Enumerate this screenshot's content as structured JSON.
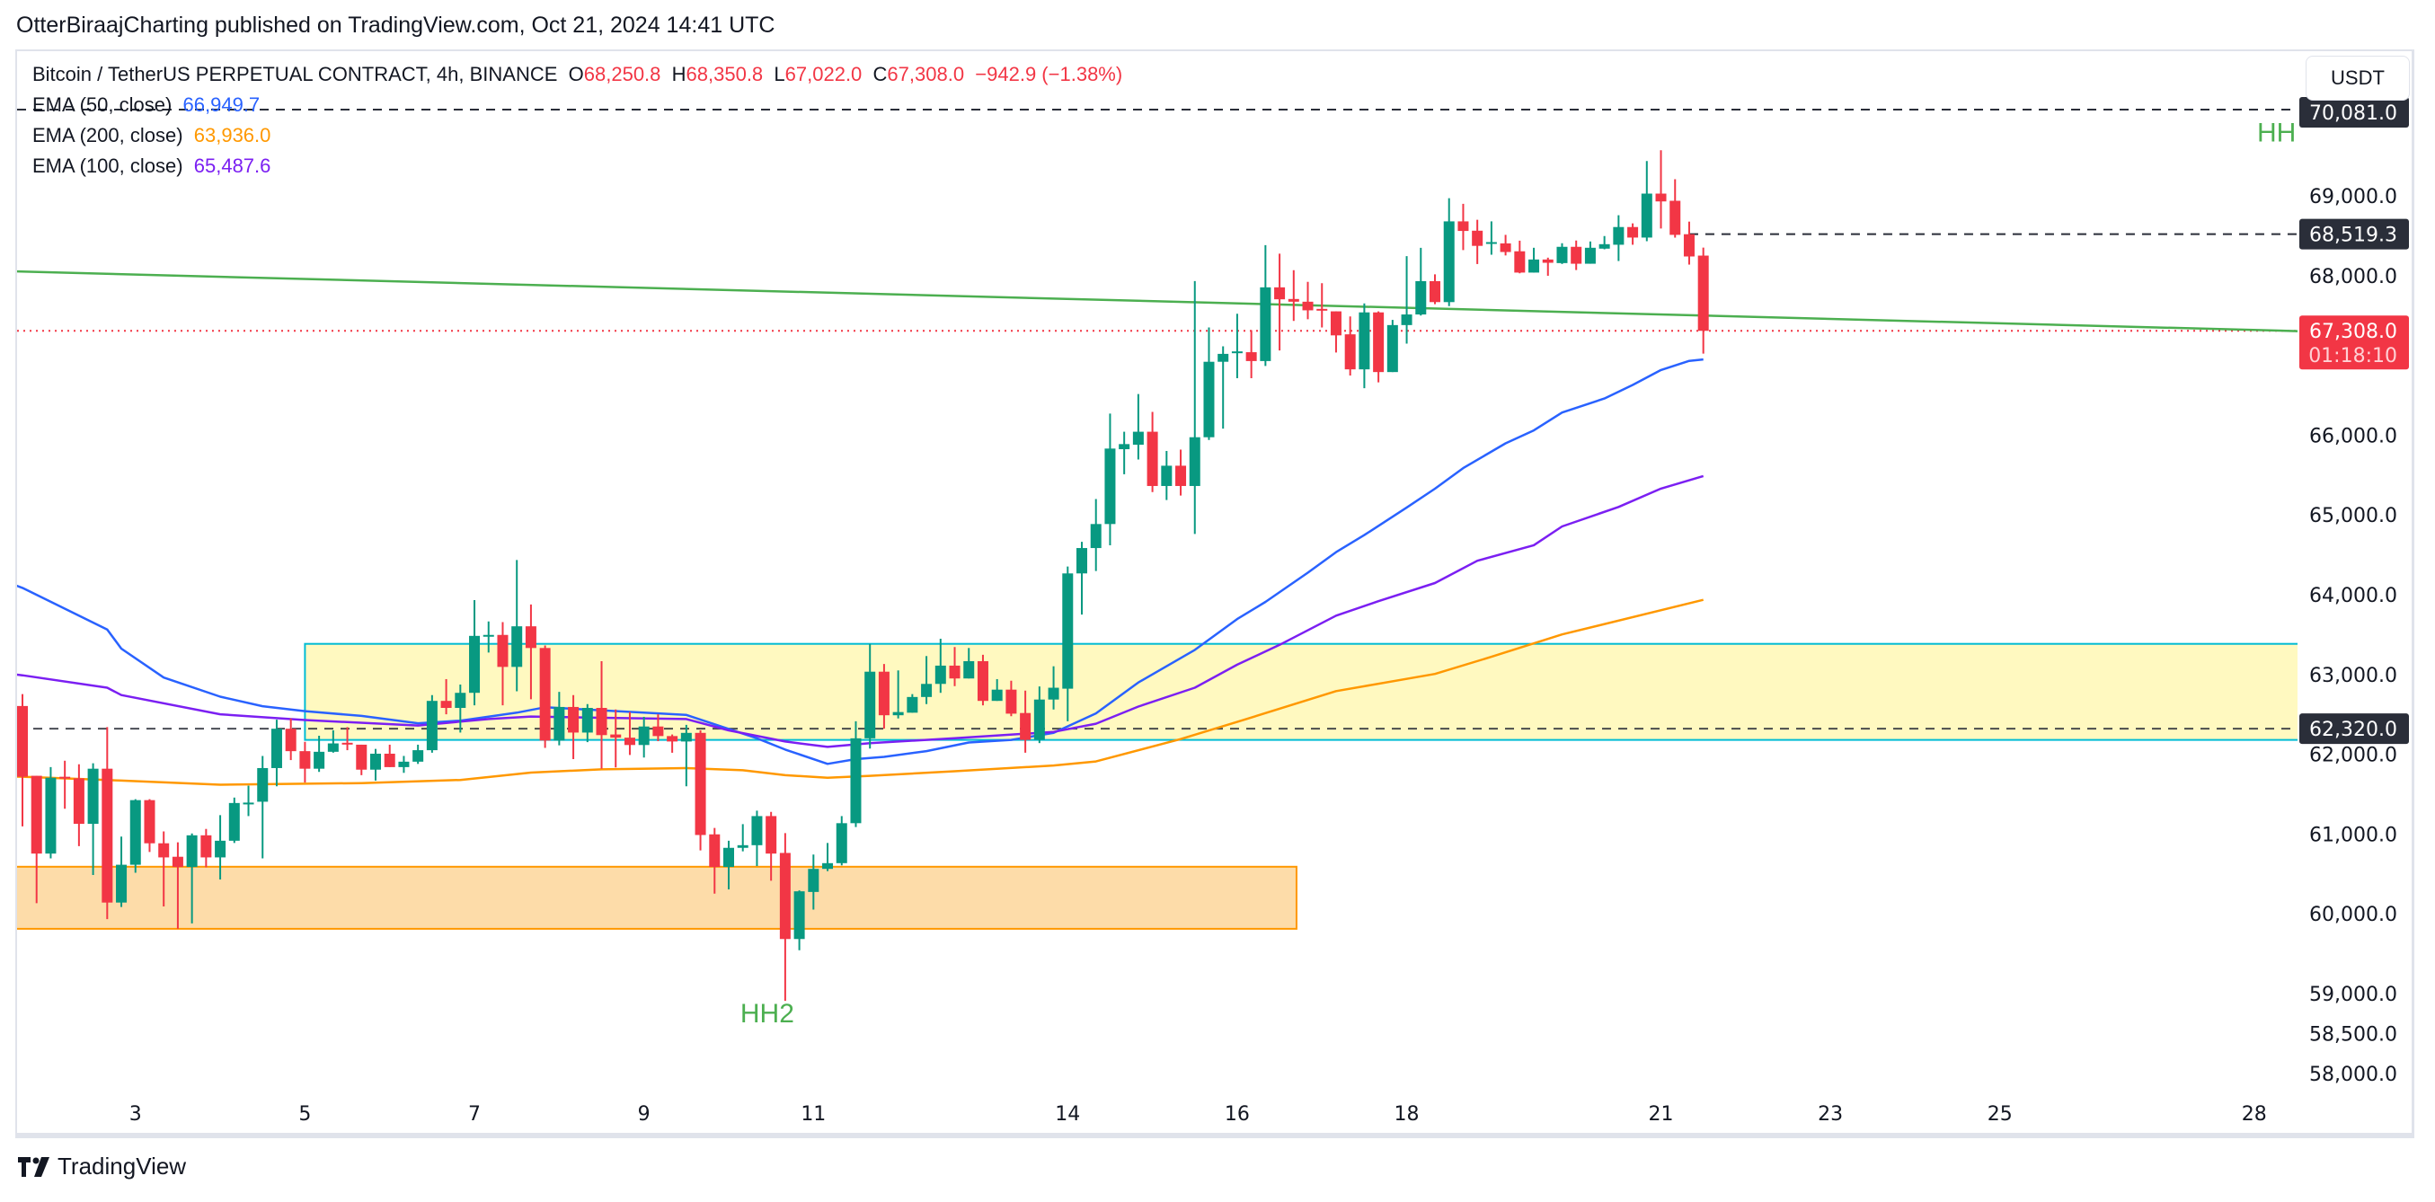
{
  "published": "OtterBiraajCharting published on TradingView.com, Oct 21, 2024 14:41 UTC",
  "legend": {
    "symbol": "Bitcoin / TetherUS PERPETUAL CONTRACT, 4h, BINANCE",
    "o_label": "O",
    "o": "68,250.8",
    "h_label": "H",
    "h": "68,350.8",
    "l_label": "L",
    "l": "67,022.0",
    "c_label": "C",
    "c": "67,308.0",
    "change": "−942.9 (−1.38%)",
    "ema50_label": "EMA (50, close)",
    "ema50_value": "66,949.7",
    "ema200_label": "EMA (200, close)",
    "ema200_value": "63,936.0",
    "ema100_label": "EMA (100, close)",
    "ema100_value": "65,487.6"
  },
  "currency_button": "USDT",
  "brand": "TradingView",
  "colors": {
    "up": "#089981",
    "down": "#F23645",
    "ema50": "#2962FF",
    "ema100": "#7B1FF2",
    "ema200": "#FF9800",
    "trend": "#4CAF50",
    "box_border": "#00BCD4"
  },
  "chart_data": {
    "type": "candlestick",
    "title": "Bitcoin / TetherUS PERPETUAL CONTRACT, 4h, BINANCE",
    "ylim": [
      57700,
      70150
    ],
    "y_ticks": [
      "69,000.0",
      "68,000.0",
      "66,000.0",
      "65,000.0",
      "64,000.0",
      "63,000.0",
      "62,000.0",
      "61,000.0",
      "60,000.0",
      "59,000.0",
      "58,500.0",
      "58,000.0"
    ],
    "y_tick_values": [
      69000,
      68000,
      66000,
      65000,
      64000,
      63000,
      62000,
      61000,
      60000,
      59000,
      58500,
      58000
    ],
    "x_ticks": [
      {
        "label": "3",
        "i": 8
      },
      {
        "label": "5",
        "i": 20
      },
      {
        "label": "7",
        "i": 32
      },
      {
        "label": "9",
        "i": 44
      },
      {
        "label": "11",
        "i": 56
      },
      {
        "label": "14",
        "i": 74
      },
      {
        "label": "16",
        "i": 86
      },
      {
        "label": "18",
        "i": 98
      },
      {
        "label": "21",
        "i": 116
      },
      {
        "label": "23",
        "i": 128
      },
      {
        "label": "25",
        "i": 140
      },
      {
        "label": "28",
        "i": 158
      }
    ],
    "candles_ohlc": [
      [
        62605,
        62754,
        61096,
        61718
      ],
      [
        61730,
        61730,
        60133,
        60755
      ],
      [
        60755,
        61839,
        60695,
        61706
      ],
      [
        61718,
        61919,
        61317,
        61698
      ],
      [
        61698,
        61875,
        60848,
        61128
      ],
      [
        61128,
        61887,
        60486,
        61819
      ],
      [
        61819,
        62340,
        59933,
        60141
      ],
      [
        60141,
        60968,
        60085,
        60615
      ],
      [
        60615,
        61437,
        60514,
        61425
      ],
      [
        61425,
        61437,
        60775,
        60884
      ],
      [
        60884,
        61032,
        60093,
        60707
      ],
      [
        60715,
        60896,
        59812,
        60587
      ],
      [
        60587,
        61008,
        59880,
        60984
      ],
      [
        60984,
        61064,
        60583,
        60707
      ],
      [
        60707,
        61237,
        60430,
        60916
      ],
      [
        60916,
        61457,
        60888,
        61389
      ],
      [
        61386,
        61606,
        61225,
        61394
      ],
      [
        61405,
        61979,
        60695,
        61827
      ],
      [
        61827,
        62433,
        61598,
        62320
      ],
      [
        62320,
        62449,
        61927,
        62039
      ],
      [
        62039,
        62156,
        61646,
        61819
      ],
      [
        61819,
        62232,
        61779,
        62031
      ],
      [
        62031,
        62300,
        62020,
        62136
      ],
      [
        62144,
        62340,
        62051,
        62128
      ],
      [
        62120,
        62120,
        61738,
        61807
      ],
      [
        61807,
        62067,
        61670,
        62007
      ],
      [
        62007,
        62120,
        61839,
        61839
      ],
      [
        61839,
        61979,
        61767,
        61907
      ],
      [
        61907,
        62120,
        61879,
        62051
      ],
      [
        62051,
        62742,
        62019,
        62669
      ],
      [
        62669,
        62942,
        62501,
        62581
      ],
      [
        62581,
        62874,
        62272,
        62770
      ],
      [
        62770,
        63933,
        62613,
        63484
      ],
      [
        63478,
        63665,
        63275,
        63496
      ],
      [
        63496,
        63657,
        62613,
        63095
      ],
      [
        63095,
        64435,
        62790,
        63604
      ],
      [
        63604,
        63877,
        62690,
        63332
      ],
      [
        63332,
        63364,
        62080,
        62172
      ],
      [
        62172,
        62782,
        62112,
        62593
      ],
      [
        62593,
        62742,
        61939,
        62272
      ],
      [
        62272,
        62629,
        62152,
        62581
      ],
      [
        62581,
        63167,
        61819,
        62240
      ],
      [
        62248,
        62561,
        61835,
        62208
      ],
      [
        62208,
        62529,
        61991,
        62116
      ],
      [
        62116,
        62469,
        61959,
        62348
      ],
      [
        62348,
        62501,
        62164,
        62228
      ],
      [
        62228,
        62248,
        62019,
        62160
      ],
      [
        62160,
        62368,
        61598,
        62268
      ],
      [
        62268,
        62300,
        60795,
        60988
      ],
      [
        60996,
        61076,
        60253,
        60587
      ],
      [
        60587,
        60916,
        60306,
        60827
      ],
      [
        60827,
        61124,
        60783,
        60860
      ],
      [
        60860,
        61293,
        60599,
        61225
      ],
      [
        61225,
        61277,
        60414,
        60755
      ],
      [
        60763,
        61012,
        58909,
        59684
      ],
      [
        59684,
        60294,
        59543,
        60282
      ],
      [
        60274,
        60743,
        60053,
        60563
      ],
      [
        60563,
        60888,
        60535,
        60635
      ],
      [
        60635,
        61225,
        60607,
        61136
      ],
      [
        61136,
        62413,
        61088,
        62200
      ],
      [
        62200,
        63384,
        62072,
        63035
      ],
      [
        63035,
        63131,
        62320,
        62489
      ],
      [
        62489,
        63051,
        62449,
        62529
      ],
      [
        62521,
        62754,
        62521,
        62718
      ],
      [
        62718,
        63231,
        62629,
        62882
      ],
      [
        62882,
        63448,
        62770,
        63111
      ],
      [
        63111,
        63344,
        62854,
        62950
      ],
      [
        62950,
        63332,
        62950,
        63167
      ],
      [
        63167,
        63247,
        62613,
        62669
      ],
      [
        62669,
        62942,
        62669,
        62810
      ],
      [
        62810,
        62922,
        62477,
        62509
      ],
      [
        62517,
        62798,
        62019,
        62180
      ],
      [
        62180,
        62850,
        62140,
        62686
      ],
      [
        62686,
        63103,
        62561,
        62834
      ],
      [
        62822,
        64353,
        62414,
        64267
      ],
      [
        64267,
        64663,
        63751,
        64585
      ],
      [
        64585,
        65200,
        64297,
        64886
      ],
      [
        64886,
        66271,
        64620,
        65832
      ],
      [
        65824,
        66043,
        65510,
        65888
      ],
      [
        65880,
        66516,
        65695,
        66043
      ],
      [
        66043,
        66292,
        65286,
        65363
      ],
      [
        65363,
        65802,
        65187,
        65617
      ],
      [
        65617,
        65819,
        65243,
        65363
      ],
      [
        65363,
        67931,
        64761,
        65974
      ],
      [
        65974,
        67350,
        65940,
        66920
      ],
      [
        66920,
        67114,
        66082,
        67019
      ],
      [
        67040,
        67522,
        66714,
        67050
      ],
      [
        67040,
        67316,
        66714,
        66929
      ],
      [
        66929,
        68382,
        66868,
        67853
      ],
      [
        67853,
        68275,
        67062,
        67703
      ],
      [
        67707,
        68068,
        67432,
        67673
      ],
      [
        67673,
        67922,
        67453,
        67565
      ],
      [
        67583,
        67905,
        67350,
        67578
      ],
      [
        67552,
        67552,
        67036,
        67251
      ],
      [
        67264,
        67488,
        66748,
        66825
      ],
      [
        66825,
        67651,
        66589,
        67539
      ],
      [
        67539,
        67552,
        66662,
        66791
      ],
      [
        66791,
        67445,
        66791,
        67380
      ],
      [
        67380,
        68244,
        67148,
        67513
      ],
      [
        67513,
        68348,
        67500,
        67931
      ],
      [
        67931,
        68016,
        67642,
        67668
      ],
      [
        67668,
        68970,
        67617,
        68680
      ],
      [
        68680,
        68900,
        68320,
        68560
      ],
      [
        68563,
        68700,
        68145,
        68373
      ],
      [
        68416,
        68680,
        68262,
        68420
      ],
      [
        68404,
        68511,
        68253,
        68296
      ],
      [
        68305,
        68438,
        68029,
        68038
      ],
      [
        68038,
        68349,
        68038,
        68202
      ],
      [
        68202,
        68225,
        67998,
        68161
      ],
      [
        68157,
        68406,
        68146,
        68361
      ],
      [
        68361,
        68440,
        68070,
        68149
      ],
      [
        68149,
        68428,
        68149,
        68349
      ],
      [
        68338,
        68496,
        68330,
        68394
      ],
      [
        68387,
        68757,
        68183,
        68609
      ],
      [
        68609,
        68655,
        68387,
        68477
      ],
      [
        68477,
        69436,
        68432,
        69028
      ],
      [
        69028,
        69572,
        68591,
        68930
      ],
      [
        68938,
        69209,
        68477,
        68511
      ],
      [
        68519,
        68677,
        68138,
        68240
      ],
      [
        68250.8,
        68350.8,
        67022,
        67308
      ]
    ],
    "series": [
      {
        "name": "EMA (50, close)",
        "color": "#2962FF",
        "points": [
          [
            -1,
            64150
          ],
          [
            0,
            64086
          ],
          [
            6,
            63564
          ],
          [
            7,
            63324
          ],
          [
            10,
            62962
          ],
          [
            14,
            62722
          ],
          [
            17,
            62602
          ],
          [
            20,
            62541
          ],
          [
            24,
            62481
          ],
          [
            28,
            62389
          ],
          [
            31,
            62421
          ],
          [
            35,
            62521
          ],
          [
            37,
            62589
          ],
          [
            47,
            62493
          ],
          [
            52,
            62200
          ],
          [
            54,
            62059
          ],
          [
            57,
            61879
          ],
          [
            59,
            61939
          ],
          [
            61,
            61967
          ],
          [
            64,
            62039
          ],
          [
            67,
            62148
          ],
          [
            70,
            62180
          ],
          [
            73,
            62268
          ],
          [
            76,
            62512
          ],
          [
            79,
            62900
          ],
          [
            83,
            63308
          ],
          [
            86,
            63695
          ],
          [
            88,
            63910
          ],
          [
            91,
            64276
          ],
          [
            93,
            64534
          ],
          [
            95,
            64748
          ],
          [
            98,
            65093
          ],
          [
            100,
            65329
          ],
          [
            102,
            65587
          ],
          [
            105,
            65897
          ],
          [
            107,
            66060
          ],
          [
            109,
            66284
          ],
          [
            112,
            66459
          ],
          [
            114,
            66629
          ],
          [
            116,
            66817
          ],
          [
            118,
            66931
          ],
          [
            119,
            66949.7
          ]
        ]
      },
      {
        "name": "EMA (100, close)",
        "color": "#7B1FF2",
        "points": [
          [
            -1,
            63010
          ],
          [
            0,
            62990
          ],
          [
            6,
            62834
          ],
          [
            7,
            62742
          ],
          [
            14,
            62501
          ],
          [
            20,
            62429
          ],
          [
            28,
            62360
          ],
          [
            33,
            62441
          ],
          [
            36,
            62473
          ],
          [
            40,
            62461
          ],
          [
            47,
            62441
          ],
          [
            50,
            62300
          ],
          [
            54,
            62160
          ],
          [
            57,
            62092
          ],
          [
            60,
            62140
          ],
          [
            66,
            62200
          ],
          [
            73,
            62280
          ],
          [
            76,
            62383
          ],
          [
            79,
            62598
          ],
          [
            83,
            62835
          ],
          [
            86,
            63123
          ],
          [
            89,
            63372
          ],
          [
            93,
            63738
          ],
          [
            96,
            63919
          ],
          [
            100,
            64146
          ],
          [
            103,
            64426
          ],
          [
            107,
            64620
          ],
          [
            109,
            64856
          ],
          [
            113,
            65100
          ],
          [
            116,
            65330
          ],
          [
            119,
            65487.6
          ]
        ]
      },
      {
        "name": "EMA (200, close)",
        "color": "#FF9800",
        "points": [
          [
            -1,
            61720
          ],
          [
            0,
            61718
          ],
          [
            7,
            61670
          ],
          [
            14,
            61618
          ],
          [
            24,
            61638
          ],
          [
            31,
            61678
          ],
          [
            36,
            61770
          ],
          [
            41,
            61811
          ],
          [
            47,
            61827
          ],
          [
            51,
            61799
          ],
          [
            54,
            61738
          ],
          [
            57,
            61706
          ],
          [
            60,
            61730
          ],
          [
            66,
            61787
          ],
          [
            73,
            61859
          ],
          [
            76,
            61910
          ],
          [
            82,
            62190
          ],
          [
            86,
            62405
          ],
          [
            93,
            62792
          ],
          [
            100,
            63007
          ],
          [
            104,
            63222
          ],
          [
            109,
            63502
          ],
          [
            119,
            63936
          ]
        ]
      }
    ],
    "drawings": {
      "trendline": [
        [
          -1,
          68055
        ],
        [
          162,
          67300
        ]
      ],
      "yellow_box": {
        "i_start": 20,
        "i_end": 162,
        "top": 63384,
        "bottom": 62180
      },
      "orange_box": {
        "i_start": -1,
        "i_end": 90.2,
        "top": 60590,
        "bottom": 59812
      },
      "level_top": 70081,
      "level_mid": {
        "price": 68519.3,
        "i_start": 118
      },
      "level_low": 62320,
      "last_price": 67308,
      "hh2": {
        "text": "HH2",
        "i": 54,
        "price": 58800
      },
      "hh": {
        "text": "HH",
        "price": 69860
      }
    },
    "price_markers": [
      {
        "text": "70,081.0",
        "price": 70081,
        "kind": "dark"
      },
      {
        "text": "68,519.3",
        "price": 68519.3,
        "kind": "dark"
      },
      {
        "text": "67,308.0",
        "price": 67308,
        "kind": "red",
        "sub": "01:18:10"
      },
      {
        "text": "62,320.0",
        "price": 62320,
        "kind": "dark"
      }
    ]
  }
}
